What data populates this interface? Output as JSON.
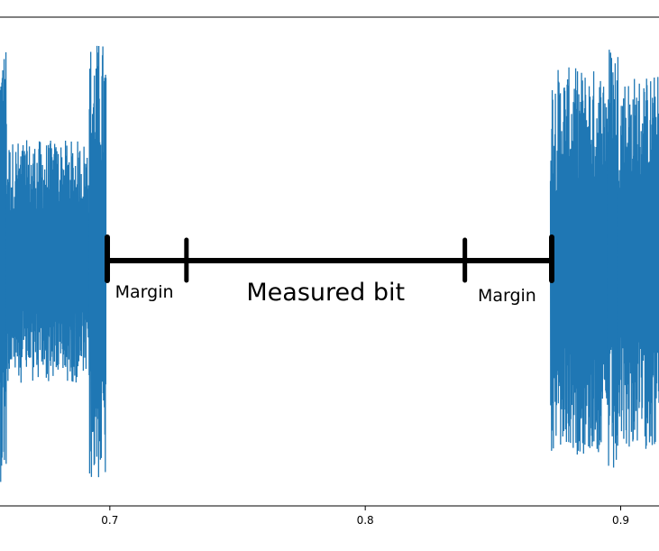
{
  "chart_data": {
    "type": "line",
    "title": "",
    "xlabel": "",
    "ylabel": "",
    "xlim": [
      0.657,
      0.915
    ],
    "ylim": [
      -1.0,
      1.0
    ],
    "x_ticks": [
      {
        "value": 0.7,
        "label": "0.7"
      },
      {
        "value": 0.8,
        "label": "0.8"
      },
      {
        "value": 0.9,
        "label": "0.9"
      }
    ],
    "series": [
      {
        "color": "#1f77b4",
        "bursts": [
          {
            "x": [
              0.657,
              0.6595
            ],
            "amplitude": 1.0
          },
          {
            "x": [
              0.6595,
              0.692
            ],
            "amplitude": 0.55
          },
          {
            "x": [
              0.692,
              0.6985
            ],
            "amplitude": 1.0
          },
          {
            "x": [
              0.8725,
              0.895
            ],
            "amplitude": 0.88
          },
          {
            "x": [
              0.895,
              0.899
            ],
            "amplitude": 1.0
          },
          {
            "x": [
              0.899,
              0.915
            ],
            "amplitude": 0.85
          }
        ]
      }
    ],
    "grid": false,
    "legend": "none"
  },
  "annotations": {
    "color": "#000000",
    "ticks_x": [
      0.699,
      0.73,
      0.839,
      0.873
    ],
    "labels": [
      {
        "text": "Margin",
        "x_center": 0.7135,
        "size": "medium"
      },
      {
        "text": "Measured bit",
        "x_center": 0.7845,
        "size": "large"
      },
      {
        "text": "Margin",
        "x_center": 0.8555,
        "size": "medium"
      }
    ]
  }
}
